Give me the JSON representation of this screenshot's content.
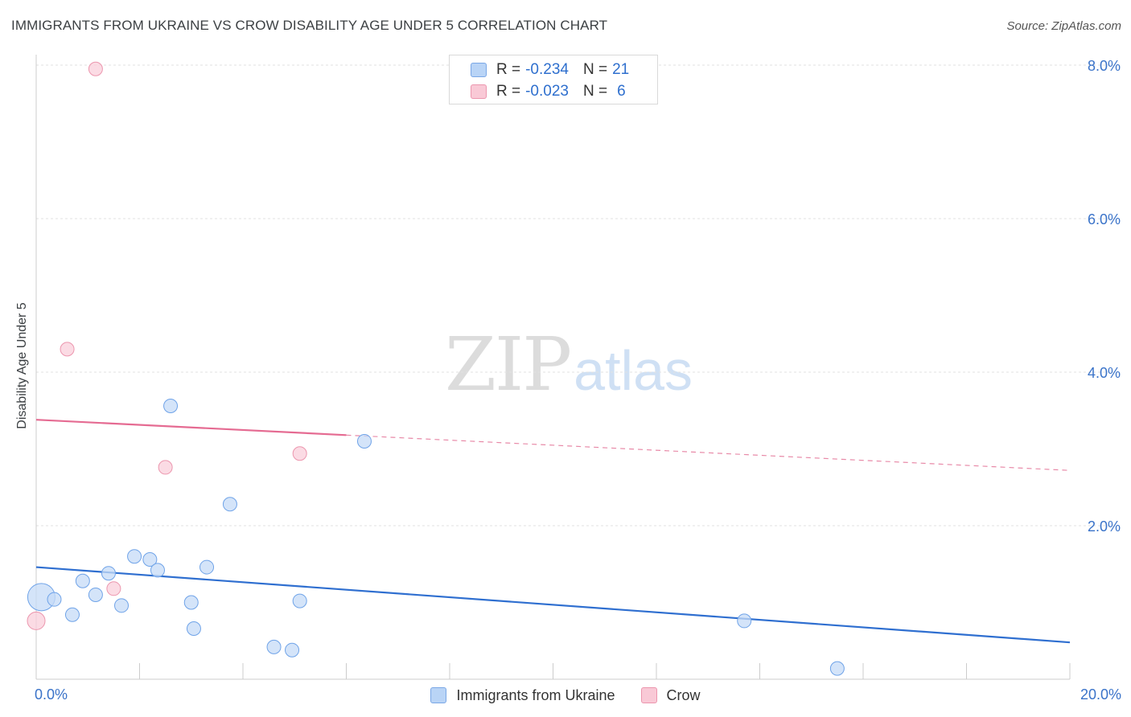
{
  "title": "IMMIGRANTS FROM UKRAINE VS CROW DISABILITY AGE UNDER 5 CORRELATION CHART",
  "source": "Source: ZipAtlas.com",
  "watermark": {
    "zip": "ZIP",
    "atlas": "atlas"
  },
  "legend_top": [
    {
      "r_label": "R =",
      "r_value": "-0.234",
      "n_label": "N =",
      "n_value": "21",
      "color": "#b9d4f6",
      "border": "#7aa7e6"
    },
    {
      "r_label": "R =",
      "r_value": "-0.023",
      "n_label": "N =",
      "n_value": "6",
      "color": "#f9c9d6",
      "border": "#ec96ae"
    }
  ],
  "legend_bottom": [
    {
      "label": "Immigrants from Ukraine",
      "color": "#b9d4f6",
      "border": "#7aa7e6"
    },
    {
      "label": "Crow",
      "color": "#f9c9d6",
      "border": "#ec96ae"
    }
  ],
  "chart_data": {
    "type": "scatter",
    "title": "IMMIGRANTS FROM UKRAINE VS CROW DISABILITY AGE UNDER 5 CORRELATION CHART",
    "xlabel": "",
    "ylabel": "Disability Age Under 5",
    "xlim": [
      0,
      20
    ],
    "ylim": [
      0,
      8.2
    ],
    "x_tick_labels": [
      {
        "value": 0,
        "label": "0.0%"
      },
      {
        "value": 20,
        "label": "20.0%"
      }
    ],
    "y_tick_labels": [
      {
        "value": 2,
        "label": "2.0%"
      },
      {
        "value": 4,
        "label": "4.0%"
      },
      {
        "value": 6,
        "label": "6.0%"
      },
      {
        "value": 8,
        "label": "8.0%"
      }
    ],
    "grid": "horizontal dashed",
    "series": [
      {
        "name": "Immigrants from Ukraine",
        "color": "#6fa3e8",
        "fill": "#c5dbf7",
        "points": [
          {
            "x": 0.1,
            "y": 1.07,
            "size": "large"
          },
          {
            "x": 0.35,
            "y": 1.04
          },
          {
            "x": 0.7,
            "y": 0.84
          },
          {
            "x": 0.9,
            "y": 1.28
          },
          {
            "x": 1.15,
            "y": 1.1
          },
          {
            "x": 1.4,
            "y": 1.38
          },
          {
            "x": 1.65,
            "y": 0.96
          },
          {
            "x": 1.9,
            "y": 1.6
          },
          {
            "x": 2.2,
            "y": 1.56
          },
          {
            "x": 2.35,
            "y": 1.42
          },
          {
            "x": 2.6,
            "y": 3.56
          },
          {
            "x": 3.0,
            "y": 1.0
          },
          {
            "x": 3.05,
            "y": 0.66
          },
          {
            "x": 3.3,
            "y": 1.46
          },
          {
            "x": 3.75,
            "y": 2.28
          },
          {
            "x": 4.6,
            "y": 0.42
          },
          {
            "x": 4.95,
            "y": 0.38
          },
          {
            "x": 5.1,
            "y": 1.02
          },
          {
            "x": 6.35,
            "y": 3.1
          },
          {
            "x": 13.7,
            "y": 0.76
          },
          {
            "x": 15.5,
            "y": 0.14
          }
        ],
        "trend": {
          "x0": 0,
          "y0": 1.46,
          "x1": 20,
          "y1": 0.48,
          "extends_dashed": false
        }
      },
      {
        "name": "Crow",
        "color": "#ec96ae",
        "fill": "#f9cfdb",
        "points": [
          {
            "x": 0.0,
            "y": 0.76,
            "size": "medium"
          },
          {
            "x": 0.6,
            "y": 4.3
          },
          {
            "x": 1.15,
            "y": 7.95
          },
          {
            "x": 1.5,
            "y": 1.18
          },
          {
            "x": 2.5,
            "y": 2.76
          },
          {
            "x": 5.1,
            "y": 2.94
          }
        ],
        "trend": {
          "x0": 0,
          "y0": 3.38,
          "x1": 6.0,
          "y1": 3.18,
          "dash_to_x": 20,
          "dash_to_y": 2.72
        }
      }
    ]
  }
}
